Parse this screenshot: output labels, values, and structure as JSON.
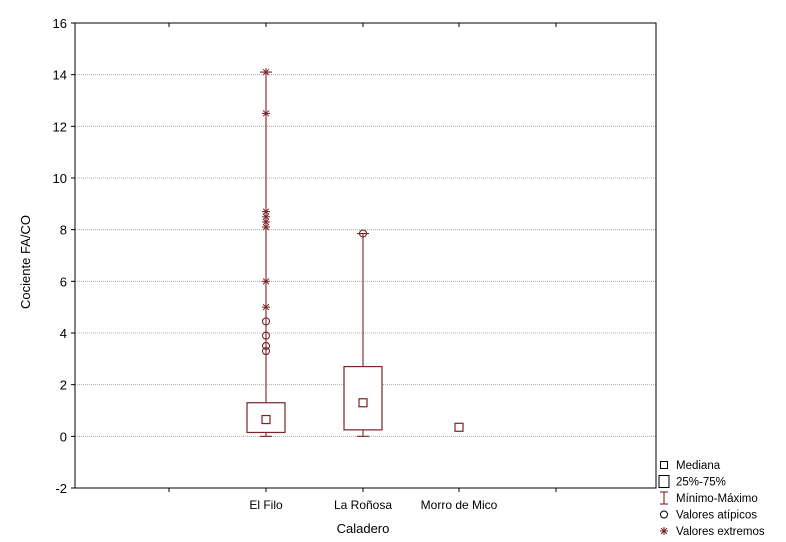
{
  "chart_data": {
    "type": "boxplot",
    "xlabel": "Caladero",
    "ylabel": "Cociente FA/CO",
    "ylim": [
      -2,
      16
    ],
    "yticks": [
      -2,
      0,
      2,
      4,
      6,
      8,
      10,
      12,
      14,
      16
    ],
    "grid": true,
    "legend_position": "bottom-right",
    "color": "#7b2328",
    "categories": [
      "El Filo",
      "La Roñosa",
      "Morro de Mico"
    ],
    "series": [
      {
        "category": "El Filo",
        "median": 0.65,
        "q1": 0.15,
        "q3": 1.3,
        "min": 0.0,
        "max": 14.1,
        "outliers": [
          3.3,
          3.5,
          3.9,
          4.45
        ],
        "extremes": [
          5.0,
          6.0,
          8.1,
          8.3,
          8.5,
          8.7,
          12.5,
          14.1
        ]
      },
      {
        "category": "La Roñosa",
        "median": 1.3,
        "q1": 0.25,
        "q3": 2.7,
        "min": 0.0,
        "max": 7.85,
        "outliers": [
          7.85
        ],
        "extremes": []
      },
      {
        "category": "Morro de Mico",
        "median": 0.35,
        "q1": null,
        "q3": null,
        "min": null,
        "max": null,
        "outliers": [],
        "extremes": []
      }
    ],
    "legend": [
      {
        "symbol": "median",
        "label": "Mediana"
      },
      {
        "symbol": "box",
        "label": "25%-75%"
      },
      {
        "symbol": "whisker",
        "label": "Mínimo-Máximo"
      },
      {
        "symbol": "outlier",
        "label": "Valores atípicos"
      },
      {
        "symbol": "extreme",
        "label": "Valores extremos"
      }
    ]
  }
}
